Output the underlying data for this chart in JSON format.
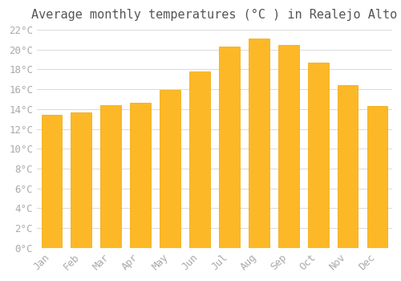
{
  "title": "Average monthly temperatures (°C ) in Realejo Alto",
  "months": [
    "Jan",
    "Feb",
    "Mar",
    "Apr",
    "May",
    "Jun",
    "Jul",
    "Aug",
    "Sep",
    "Oct",
    "Nov",
    "Dec"
  ],
  "values": [
    13.4,
    13.7,
    14.4,
    14.6,
    15.9,
    17.8,
    20.3,
    21.1,
    20.5,
    18.7,
    16.4,
    14.3
  ],
  "bar_color": "#FDB827",
  "bar_edge_color": "#F0A500",
  "background_color": "#FFFFFF",
  "grid_color": "#DDDDDD",
  "title_color": "#555555",
  "tick_label_color": "#AAAAAA",
  "ylim": [
    0,
    22
  ],
  "ytick_step": 2,
  "title_fontsize": 11,
  "axis_fontsize": 9
}
